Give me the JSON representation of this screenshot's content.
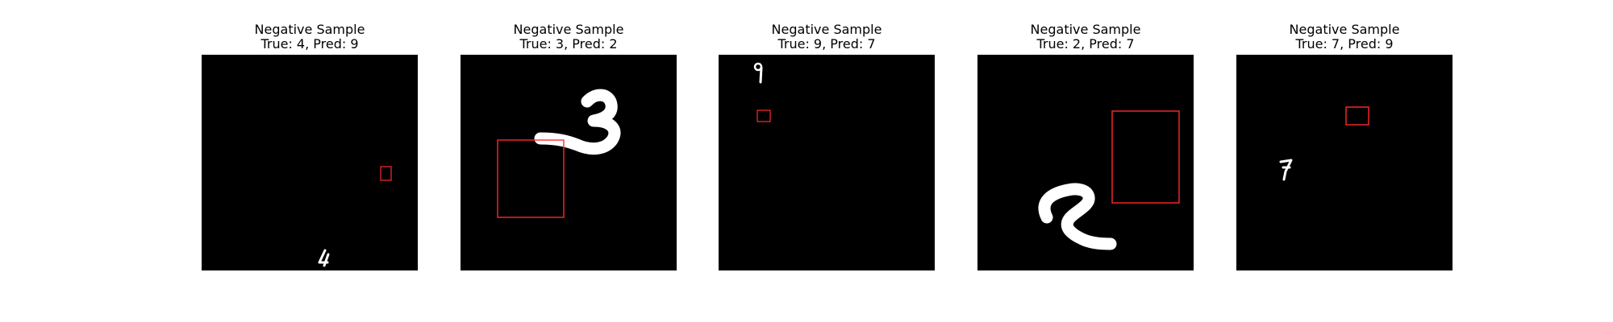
{
  "figure": {
    "panels": [
      {
        "title": "Negative Sample",
        "subtitle": "True: 4, Pred: 9",
        "digit_label": "4",
        "box_color": "#ff2a2a"
      },
      {
        "title": "Negative Sample",
        "subtitle": "True: 3, Pred: 2",
        "digit_label": "3",
        "box_color": "#ff2a2a"
      },
      {
        "title": "Negative Sample",
        "subtitle": "True: 9, Pred: 7",
        "digit_label": "9",
        "box_color": "#ff2a2a"
      },
      {
        "title": "Negative Sample",
        "subtitle": "True: 2, Pred: 7",
        "digit_label": "2",
        "box_color": "#ff2a2a"
      },
      {
        "title": "Negative Sample",
        "subtitle": "True: 7, Pred: 9",
        "digit_label": "7",
        "box_color": "#ff2a2a"
      }
    ]
  }
}
